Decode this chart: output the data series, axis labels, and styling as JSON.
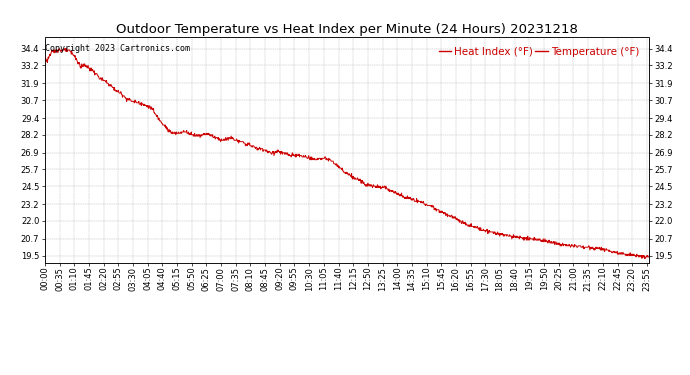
{
  "title": "Outdoor Temperature vs Heat Index per Minute (24 Hours) 20231218",
  "copyright_text": "Copyright 2023 Cartronics.com",
  "legend_heat_index": "Heat Index (°F)",
  "legend_temperature": "Temperature (°F)",
  "line_color": "#cc0000",
  "background_color": "#ffffff",
  "grid_color": "#999999",
  "y_min": 19.0,
  "y_max": 35.2,
  "y_ticks": [
    19.5,
    20.7,
    22.0,
    23.2,
    24.5,
    25.7,
    26.9,
    28.2,
    29.4,
    30.7,
    31.9,
    33.2,
    34.4
  ],
  "title_fontsize": 9.5,
  "tick_fontsize": 6,
  "legend_fontsize": 7.5,
  "copyright_fontsize": 6,
  "waypoints": [
    [
      0,
      33.8
    ],
    [
      5,
      33.5
    ],
    [
      15,
      34.1
    ],
    [
      30,
      34.3
    ],
    [
      45,
      34.3
    ],
    [
      60,
      34.2
    ],
    [
      70,
      33.9
    ],
    [
      85,
      33.1
    ],
    [
      95,
      33.2
    ],
    [
      105,
      33.0
    ],
    [
      115,
      32.8
    ],
    [
      130,
      32.3
    ],
    [
      145,
      32.0
    ],
    [
      155,
      31.8
    ],
    [
      165,
      31.5
    ],
    [
      180,
      31.2
    ],
    [
      195,
      30.8
    ],
    [
      210,
      30.6
    ],
    [
      225,
      30.5
    ],
    [
      240,
      30.3
    ],
    [
      255,
      30.1
    ],
    [
      265,
      29.6
    ],
    [
      275,
      29.2
    ],
    [
      285,
      28.9
    ],
    [
      295,
      28.5
    ],
    [
      305,
      28.3
    ],
    [
      315,
      28.3
    ],
    [
      325,
      28.4
    ],
    [
      335,
      28.4
    ],
    [
      345,
      28.3
    ],
    [
      355,
      28.2
    ],
    [
      365,
      28.1
    ],
    [
      375,
      28.2
    ],
    [
      385,
      28.3
    ],
    [
      395,
      28.2
    ],
    [
      405,
      28.0
    ],
    [
      415,
      27.9
    ],
    [
      425,
      27.8
    ],
    [
      435,
      27.9
    ],
    [
      445,
      28.0
    ],
    [
      455,
      27.8
    ],
    [
      465,
      27.7
    ],
    [
      475,
      27.6
    ],
    [
      485,
      27.5
    ],
    [
      495,
      27.4
    ],
    [
      505,
      27.2
    ],
    [
      515,
      27.2
    ],
    [
      525,
      27.1
    ],
    [
      535,
      26.9
    ],
    [
      545,
      26.9
    ],
    [
      555,
      27.0
    ],
    [
      565,
      26.9
    ],
    [
      575,
      26.8
    ],
    [
      585,
      26.7
    ],
    [
      595,
      26.7
    ],
    [
      605,
      26.7
    ],
    [
      615,
      26.6
    ],
    [
      625,
      26.6
    ],
    [
      635,
      26.5
    ],
    [
      645,
      26.4
    ],
    [
      655,
      26.5
    ],
    [
      665,
      26.5
    ],
    [
      675,
      26.4
    ],
    [
      685,
      26.3
    ],
    [
      700,
      25.9
    ],
    [
      715,
      25.5
    ],
    [
      730,
      25.2
    ],
    [
      750,
      24.9
    ],
    [
      770,
      24.6
    ],
    [
      790,
      24.5
    ],
    [
      810,
      24.4
    ],
    [
      830,
      24.1
    ],
    [
      850,
      23.8
    ],
    [
      870,
      23.6
    ],
    [
      890,
      23.4
    ],
    [
      910,
      23.2
    ],
    [
      930,
      22.9
    ],
    [
      950,
      22.6
    ],
    [
      970,
      22.3
    ],
    [
      990,
      22.0
    ],
    [
      1010,
      21.7
    ],
    [
      1030,
      21.5
    ],
    [
      1060,
      21.2
    ],
    [
      1090,
      21.0
    ],
    [
      1110,
      20.9
    ],
    [
      1130,
      20.8
    ],
    [
      1150,
      20.7
    ],
    [
      1170,
      20.7
    ],
    [
      1200,
      20.5
    ],
    [
      1230,
      20.3
    ],
    [
      1260,
      20.2
    ],
    [
      1290,
      20.1
    ],
    [
      1320,
      20.0
    ],
    [
      1350,
      19.8
    ],
    [
      1380,
      19.6
    ],
    [
      1410,
      19.5
    ],
    [
      1430,
      19.4
    ],
    [
      1439,
      19.4
    ]
  ]
}
